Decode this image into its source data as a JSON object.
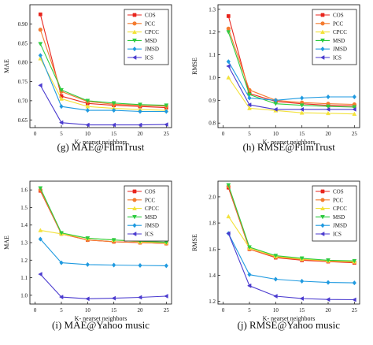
{
  "charts": [
    {
      "caption": "(g)  MAE@FilmTrust",
      "chart_data": {
        "type": "line",
        "x": [
          1,
          5,
          10,
          15,
          20,
          25
        ],
        "xlabel": "K- nearset neighbors",
        "ylabel": "MAE",
        "xlim": [
          -1,
          26
        ],
        "ylim": [
          0.63,
          0.95
        ],
        "xticks": [
          0,
          5,
          10,
          15,
          20,
          25
        ],
        "yticks": [
          0.65,
          0.7,
          0.75,
          0.8,
          0.85,
          0.9
        ],
        "ytick_labels": [
          "0.65",
          "0.70",
          "0.75",
          "0.80",
          "0.85",
          "0.90"
        ],
        "legend": "top-right",
        "series": [
          {
            "name": "COS",
            "color": "#e8251d",
            "marker": "square",
            "values": [
              0.925,
              0.712,
              0.693,
              0.688,
              0.685,
              0.682
            ]
          },
          {
            "name": "PCC",
            "color": "#f47b2f",
            "marker": "circle",
            "values": [
              0.885,
              0.724,
              0.698,
              0.691,
              0.688,
              0.686
            ]
          },
          {
            "name": "CPCC",
            "color": "#f3e23a",
            "marker": "triangle-up",
            "values": [
              0.81,
              0.705,
              0.685,
              0.68,
              0.677,
              0.675
            ]
          },
          {
            "name": "MSD",
            "color": "#2ecc40",
            "marker": "triangle-down",
            "values": [
              0.848,
              0.728,
              0.7,
              0.694,
              0.69,
              0.688
            ]
          },
          {
            "name": "JMSD",
            "color": "#1f9ae0",
            "marker": "diamond",
            "values": [
              0.818,
              0.685,
              0.675,
              0.675,
              0.672,
              0.672
            ]
          },
          {
            "name": "ICS",
            "color": "#4b3bcf",
            "marker": "triangle-left",
            "values": [
              0.74,
              0.643,
              0.637,
              0.637,
              0.637,
              0.638
            ]
          }
        ]
      }
    },
    {
      "caption": "(h)  RMSE@FilmTrust",
      "chart_data": {
        "type": "line",
        "x": [
          1,
          5,
          10,
          15,
          20,
          25
        ],
        "xlabel": "K- nearset neighbors",
        "ylabel": "RMSE",
        "xlim": [
          -1,
          26
        ],
        "ylim": [
          0.78,
          1.32
        ],
        "xticks": [
          0,
          5,
          10,
          15,
          20,
          25
        ],
        "yticks": [
          0.8,
          0.9,
          1.0,
          1.1,
          1.2,
          1.3
        ],
        "ytick_labels": [
          "0.8",
          "0.9",
          "1.0",
          "1.1",
          "1.2",
          "1.3"
        ],
        "legend": "top-right",
        "series": [
          {
            "name": "COS",
            "color": "#e8251d",
            "marker": "square",
            "values": [
              1.27,
              0.93,
              0.895,
              0.885,
              0.878,
              0.875
            ]
          },
          {
            "name": "PCC",
            "color": "#f47b2f",
            "marker": "circle",
            "values": [
              1.215,
              0.945,
              0.9,
              0.89,
              0.885,
              0.882
            ]
          },
          {
            "name": "CPCC",
            "color": "#f3e23a",
            "marker": "triangle-up",
            "values": [
              1.0,
              0.865,
              0.855,
              0.845,
              0.843,
              0.84
            ]
          },
          {
            "name": "MSD",
            "color": "#2ecc40",
            "marker": "triangle-down",
            "values": [
              1.2,
              0.925,
              0.885,
              0.878,
              0.873,
              0.87
            ]
          },
          {
            "name": "JMSD",
            "color": "#1f9ae0",
            "marker": "diamond",
            "values": [
              1.07,
              0.91,
              0.9,
              0.91,
              0.915,
              0.915
            ]
          },
          {
            "name": "ICS",
            "color": "#4b3bcf",
            "marker": "triangle-left",
            "values": [
              1.05,
              0.88,
              0.86,
              0.86,
              0.86,
              0.86
            ]
          }
        ]
      }
    },
    {
      "caption": "(i)  MAE@Yahoo music",
      "chart_data": {
        "type": "line",
        "x": [
          1,
          5,
          10,
          15,
          20,
          25
        ],
        "xlabel": "K- nearset neighbors",
        "ylabel": "MAE",
        "xlim": [
          -1,
          26
        ],
        "ylim": [
          0.95,
          1.65
        ],
        "xticks": [
          0,
          5,
          10,
          15,
          20,
          25
        ],
        "yticks": [
          1.0,
          1.1,
          1.2,
          1.3,
          1.4,
          1.5,
          1.6
        ],
        "ytick_labels": [
          "1.0",
          "1.1",
          "1.2",
          "1.3",
          "1.4",
          "1.5",
          "1.6"
        ],
        "legend": "top-right",
        "series": [
          {
            "name": "COS",
            "color": "#e8251d",
            "marker": "square",
            "values": [
              1.595,
              1.35,
              1.315,
              1.305,
              1.3,
              1.295
            ]
          },
          {
            "name": "PCC",
            "color": "#f47b2f",
            "marker": "circle",
            "values": [
              1.6,
              1.35,
              1.315,
              1.305,
              1.3,
              1.295
            ]
          },
          {
            "name": "CPCC",
            "color": "#f3e23a",
            "marker": "triangle-up",
            "values": [
              1.37,
              1.35,
              1.325,
              1.315,
              1.305,
              1.3
            ]
          },
          {
            "name": "MSD",
            "color": "#2ecc40",
            "marker": "triangle-down",
            "values": [
              1.61,
              1.355,
              1.325,
              1.315,
              1.308,
              1.302
            ]
          },
          {
            "name": "JMSD",
            "color": "#1f9ae0",
            "marker": "diamond",
            "values": [
              1.32,
              1.185,
              1.175,
              1.172,
              1.17,
              1.168
            ]
          },
          {
            "name": "ICS",
            "color": "#4b3bcf",
            "marker": "triangle-left",
            "values": [
              1.12,
              0.99,
              0.98,
              0.983,
              0.988,
              0.995
            ]
          }
        ]
      }
    },
    {
      "caption": "(j)  RMSE@Yahoo music",
      "chart_data": {
        "type": "line",
        "x": [
          1,
          5,
          10,
          15,
          20,
          25
        ],
        "xlabel": "K- nearset neighbors",
        "ylabel": "RMSE",
        "xlim": [
          -1,
          26
        ],
        "ylim": [
          1.18,
          2.12
        ],
        "xticks": [
          0,
          5,
          10,
          15,
          20,
          25
        ],
        "yticks": [
          1.2,
          1.4,
          1.6,
          1.8,
          2.0
        ],
        "ytick_labels": [
          "1.2",
          "1.4",
          "1.6",
          "1.8",
          "2.0"
        ],
        "legend": "top-right",
        "series": [
          {
            "name": "COS",
            "color": "#e8251d",
            "marker": "square",
            "values": [
              2.07,
              1.6,
              1.535,
              1.515,
              1.505,
              1.495
            ]
          },
          {
            "name": "PCC",
            "color": "#f47b2f",
            "marker": "circle",
            "values": [
              2.08,
              1.6,
              1.54,
              1.52,
              1.508,
              1.5
            ]
          },
          {
            "name": "CPCC",
            "color": "#f3e23a",
            "marker": "triangle-up",
            "values": [
              1.85,
              1.61,
              1.545,
              1.525,
              1.512,
              1.505
            ]
          },
          {
            "name": "MSD",
            "color": "#2ecc40",
            "marker": "triangle-down",
            "values": [
              2.09,
              1.615,
              1.55,
              1.53,
              1.515,
              1.51
            ]
          },
          {
            "name": "JMSD",
            "color": "#1f9ae0",
            "marker": "diamond",
            "values": [
              1.72,
              1.405,
              1.37,
              1.355,
              1.345,
              1.342
            ]
          },
          {
            "name": "ICS",
            "color": "#4b3bcf",
            "marker": "triangle-left",
            "values": [
              1.72,
              1.32,
              1.24,
              1.222,
              1.215,
              1.213
            ]
          }
        ]
      }
    }
  ]
}
